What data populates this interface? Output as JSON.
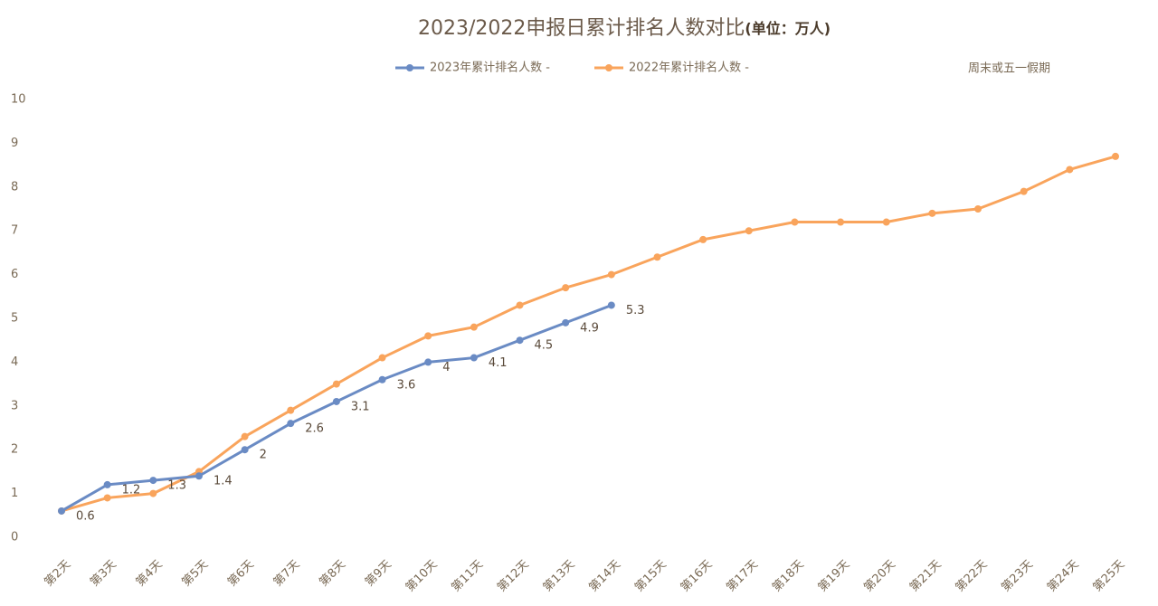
{
  "chart_data": {
    "type": "line",
    "title": "2023/2022申报日累计排名人数对比",
    "subtitle": "(单位：万人)",
    "annotation": "周末或五一假期",
    "categories": [
      "第2天",
      "第3天",
      "第4天",
      "第5天",
      "第6天",
      "第7天",
      "第8天",
      "第9天",
      "第10天",
      "第11天",
      "第12天",
      "第13天",
      "第14天",
      "第15天",
      "第16天",
      "第17天",
      "第18天",
      "第19天",
      "第20天",
      "第21天",
      "第22天",
      "第23天",
      "第24天",
      "第25天"
    ],
    "series": [
      {
        "name": "2023年累计排名人数 -",
        "color": "#6a8bc4",
        "values": [
          0.6,
          1.2,
          1.3,
          1.4,
          2,
          2.6,
          3.1,
          3.6,
          4,
          4.1,
          4.5,
          4.9,
          5.3,
          null,
          null,
          null,
          null,
          null,
          null,
          null,
          null,
          null,
          null,
          null
        ]
      },
      {
        "name": "2022年累计排名人数 -",
        "color": "#f9a45c",
        "values": [
          0.6,
          0.9,
          1.0,
          1.5,
          2.3,
          2.9,
          3.5,
          4.1,
          4.6,
          4.8,
          5.3,
          5.7,
          6.0,
          6.4,
          6.8,
          7.0,
          7.2,
          7.2,
          7.2,
          7.4,
          7.5,
          7.9,
          8.4,
          8.7
        ]
      }
    ],
    "ylim": [
      0,
      10
    ],
    "yticks": [
      0,
      1,
      2,
      3,
      4,
      5,
      6,
      7,
      8,
      9,
      10
    ],
    "grid": false
  }
}
